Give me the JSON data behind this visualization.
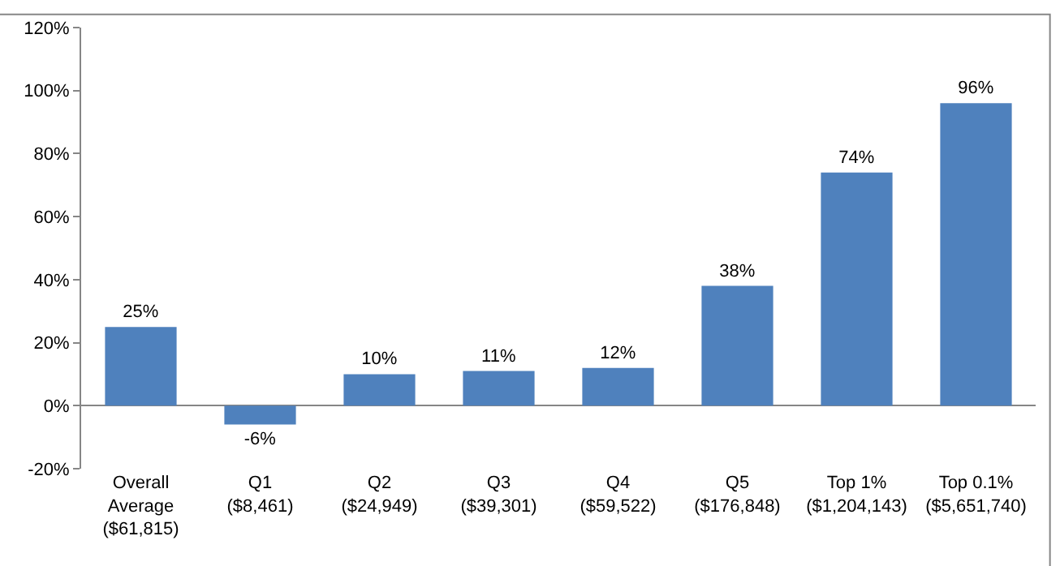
{
  "chart_data": {
    "type": "bar",
    "categories": [
      "Overall\nAverage\n($61,815)",
      "Q1\n($8,461)",
      "Q2\n($24,949)",
      "Q3\n($39,301)",
      "Q4\n($59,522)",
      "Q5\n($176,848)",
      "Top 1%\n($1,204,143)",
      "Top 0.1%\n($5,651,740)"
    ],
    "values": [
      25,
      -6,
      10,
      11,
      12,
      38,
      74,
      96
    ],
    "value_labels": [
      "25%",
      "-6%",
      "10%",
      "11%",
      "12%",
      "38%",
      "74%",
      "96%"
    ],
    "color": "#4f81bd",
    "ylim": [
      -20,
      120
    ],
    "yticks": [
      {
        "value": -20,
        "label": "-20%"
      },
      {
        "value": 0,
        "label": "0%"
      },
      {
        "value": 20,
        "label": "20%"
      },
      {
        "value": 40,
        "label": "40%"
      },
      {
        "value": 60,
        "label": "60%"
      },
      {
        "value": 80,
        "label": "80%"
      },
      {
        "value": 100,
        "label": "100%"
      },
      {
        "value": 120,
        "label": "120%"
      }
    ]
  }
}
